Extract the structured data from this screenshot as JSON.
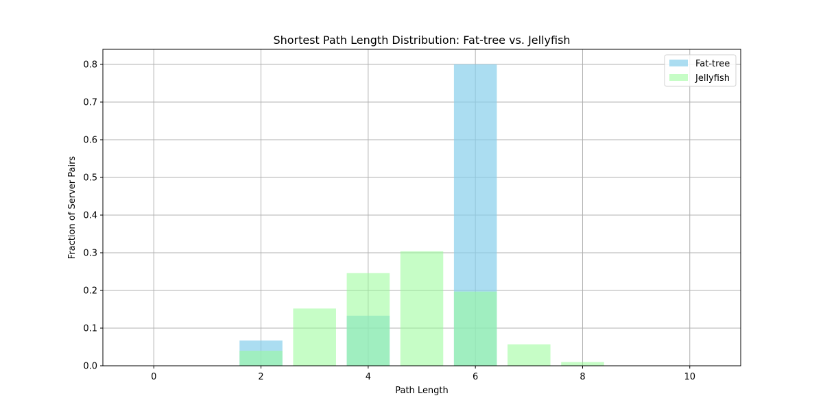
{
  "chart_data": {
    "type": "bar",
    "title": "Shortest Path Length Distribution: Fat-tree vs. Jellyfish",
    "xlabel": "Path Length",
    "ylabel": "Fraction of Server Pairs",
    "xlim": [
      -0.95,
      10.95
    ],
    "ylim": [
      0,
      0.84
    ],
    "xticks": [
      0,
      2,
      4,
      6,
      8,
      10
    ],
    "yticks": [
      0.0,
      0.1,
      0.2,
      0.3,
      0.4,
      0.5,
      0.6,
      0.7,
      0.8
    ],
    "grid": true,
    "legend_position": "top-right",
    "bar_width": 0.8,
    "series": [
      {
        "name": "Fat-tree",
        "color": "#87CEEB",
        "opacity": 0.7,
        "x": [
          2,
          4,
          6
        ],
        "values": [
          0.067,
          0.133,
          0.8
        ]
      },
      {
        "name": "Jellyfish",
        "color": "#98FB98",
        "opacity": 0.55,
        "x": [
          2,
          3,
          4,
          5,
          6,
          7,
          8
        ],
        "values": [
          0.04,
          0.152,
          0.246,
          0.304,
          0.197,
          0.057,
          0.01
        ]
      }
    ]
  }
}
